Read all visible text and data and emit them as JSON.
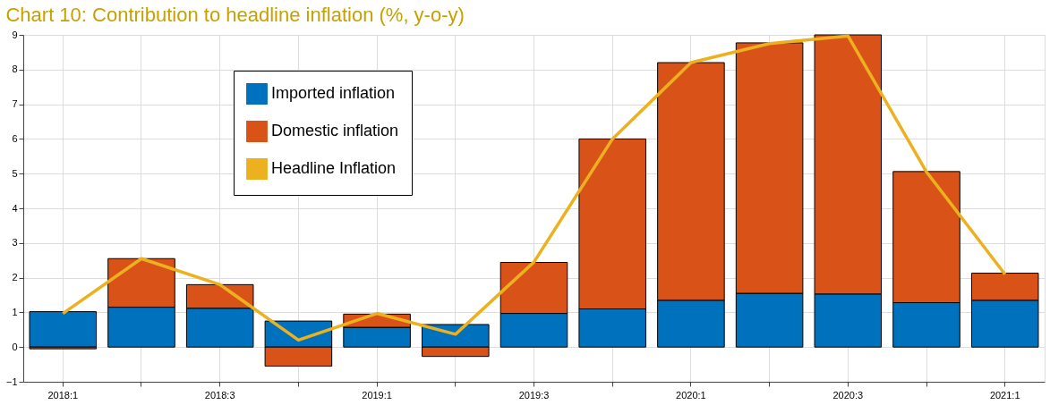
{
  "chart_data": {
    "type": "bar",
    "title": "Chart 10: Contribution to headline inflation (%, y-o-y)",
    "categories": [
      "2018:1",
      null,
      "2018:3",
      null,
      "2019:1",
      null,
      "2019:3",
      null,
      "2020:1",
      null,
      "2020:3",
      null,
      "2021:1"
    ],
    "stacked": true,
    "series": [
      {
        "name": "Imported inflation",
        "color": "#0072bd",
        "values": [
          1.02,
          1.15,
          1.12,
          0.75,
          0.57,
          0.65,
          0.97,
          1.1,
          1.35,
          1.55,
          1.53,
          1.28,
          1.35
        ]
      },
      {
        "name": "Domestic inflation",
        "color": "#d95319",
        "values": [
          -0.05,
          1.4,
          0.68,
          -0.55,
          0.38,
          -0.27,
          1.47,
          4.9,
          6.85,
          7.22,
          7.47,
          3.78,
          0.78
        ]
      },
      {
        "name": "Headline Inflation",
        "type": "line",
        "color": "#edb120",
        "values": [
          0.97,
          2.55,
          1.8,
          0.2,
          0.97,
          0.37,
          2.45,
          6.0,
          8.2,
          8.75,
          8.97,
          5.05,
          2.1
        ]
      }
    ],
    "ylim": [
      -1,
      9
    ],
    "yticks": [
      -1,
      0,
      1,
      2,
      3,
      4,
      5,
      6,
      7,
      8,
      9
    ],
    "grid": true,
    "legend": "top left"
  }
}
